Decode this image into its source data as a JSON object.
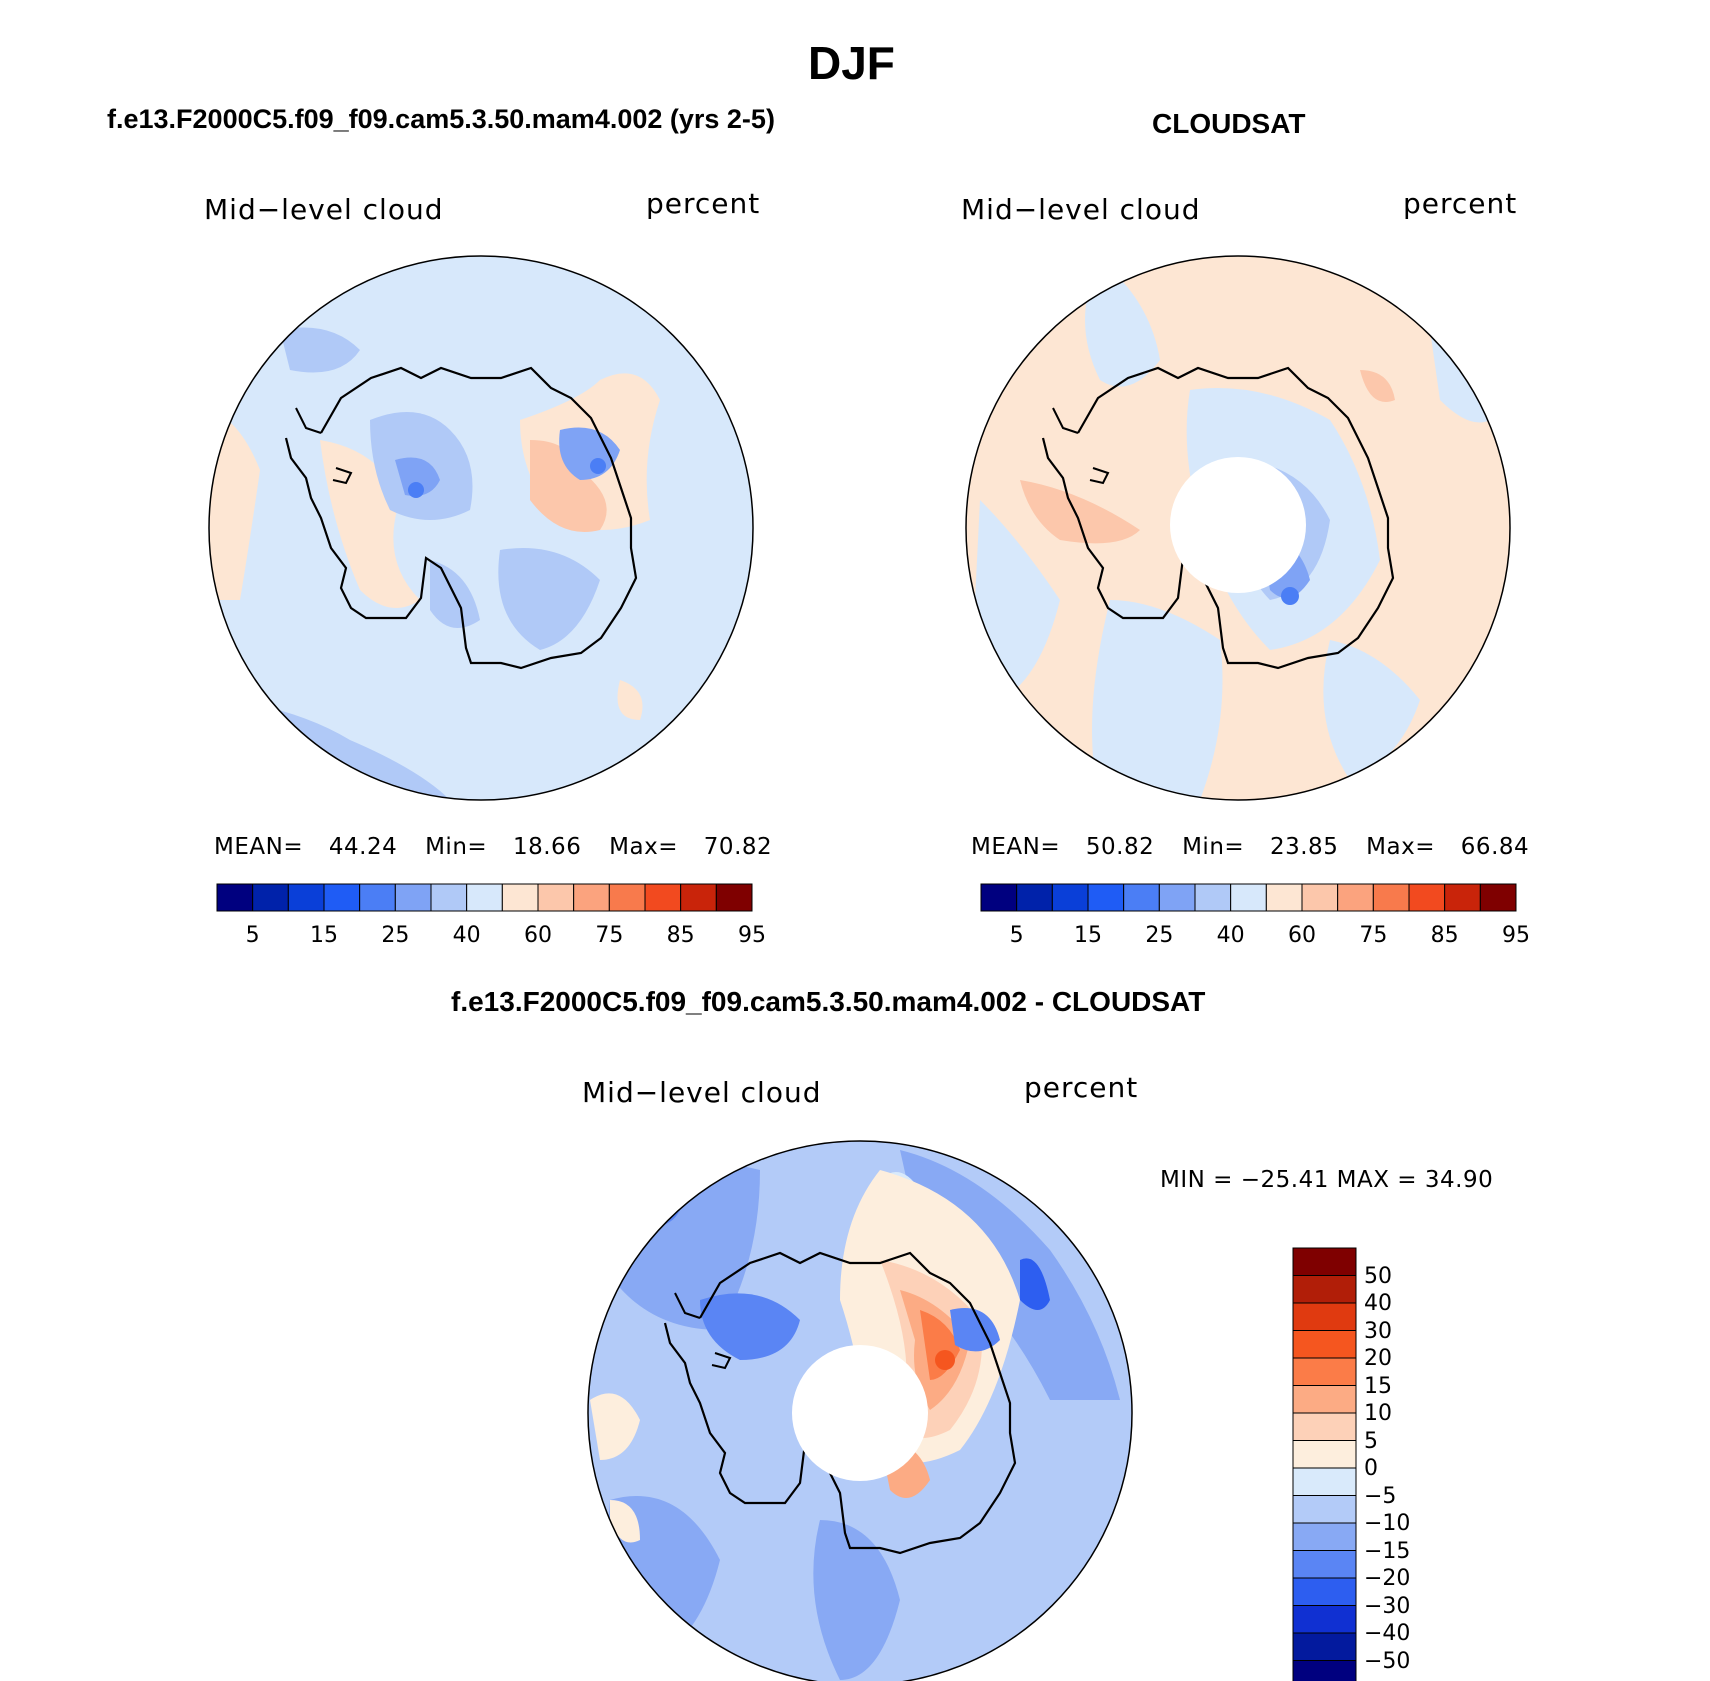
{
  "figure_title": "DJF",
  "panels": [
    {
      "id": "model",
      "title": "f.e13.F2000C5.f09_f09.cam5.3.50.mam4.002 (yrs 2-5)",
      "variable": "Mid−level cloud",
      "units": "percent",
      "stats": {
        "mean_label": "MEAN=",
        "mean": "44.24",
        "min_label": "Min=",
        "min": "18.66",
        "max_label": "Max=",
        "max": "70.82"
      },
      "colorbar_ticks": [
        "5",
        "15",
        "25",
        "40",
        "60",
        "75",
        "85",
        "95"
      ]
    },
    {
      "id": "obs",
      "title": "CLOUDSAT",
      "variable": "Mid−level cloud",
      "units": "percent",
      "stats": {
        "mean_label": "MEAN=",
        "mean": "50.82",
        "min_label": "Min=",
        "min": "23.85",
        "max_label": "Max=",
        "max": "66.84"
      },
      "colorbar_ticks": [
        "5",
        "15",
        "25",
        "40",
        "60",
        "75",
        "85",
        "95"
      ]
    }
  ],
  "diff_panel": {
    "title": "f.e13.F2000C5.f09_f09.cam5.3.50.mam4.002 - CLOUDSAT",
    "variable": "Mid−level cloud",
    "units": "percent",
    "minmax": "MIN = −25.41 MAX =  34.90",
    "colorbar_ticks": [
      "50",
      "40",
      "30",
      "20",
      "15",
      "10",
      "5",
      "0",
      "−5",
      "−10",
      "−15",
      "−20",
      "−30",
      "−40",
      "−50"
    ]
  },
  "colors": {
    "abs_scale": [
      "#00007f",
      "#0022aa",
      "#0a3fd8",
      "#1f5cf5",
      "#4b7ef5",
      "#7fa3f5",
      "#b0c9f7",
      "#d7e8fb",
      "#fde6d3",
      "#fcc7ab",
      "#fba37e",
      "#f87a4c",
      "#f24a1f",
      "#c9240a",
      "#7f0000"
    ],
    "diff_scale": [
      "#7f0000",
      "#b11e08",
      "#e03a10",
      "#f5561f",
      "#fb7c48",
      "#fcab84",
      "#fdd1b8",
      "#fdeedd",
      "#d9eafb",
      "#b3cbf8",
      "#88a9f4",
      "#5a85f4",
      "#2d5ef0",
      "#1030d2",
      "#031a9e",
      "#00007f"
    ]
  }
}
